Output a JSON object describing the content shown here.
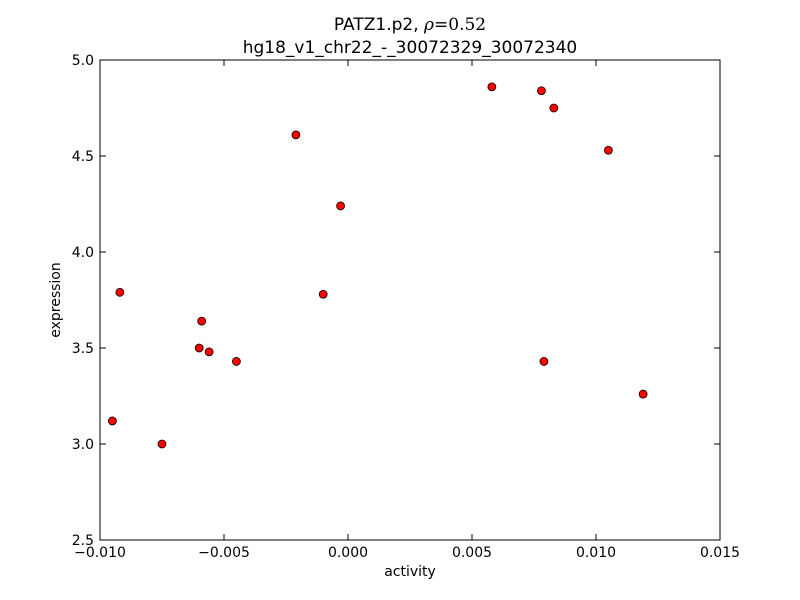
{
  "chart_data": {
    "type": "scatter",
    "title": {
      "prefix": "PATZ1.p2, ",
      "rho_symbol": "ρ",
      "rho_equals": "=",
      "rho_value": "0.52",
      "line2": "hg18_v1_chr22_-_30072329_30072340"
    },
    "xlabel": "activity",
    "ylabel": "expression",
    "xlim": [
      -0.01,
      0.015
    ],
    "ylim": [
      2.5,
      5.0
    ],
    "xticks": [
      -0.01,
      -0.005,
      0.0,
      0.005,
      0.01,
      0.015
    ],
    "xtick_labels": [
      "−0.010",
      "−0.005",
      "0.000",
      "0.005",
      "0.010",
      "0.015"
    ],
    "yticks": [
      2.5,
      3.0,
      3.5,
      4.0,
      4.5,
      5.0
    ],
    "ytick_labels": [
      "2.5",
      "3.0",
      "3.5",
      "4.0",
      "4.5",
      "5.0"
    ],
    "grid": false,
    "marker_color": "#ff0000",
    "marker_edge_color": "#000000",
    "points": [
      {
        "x": -0.0095,
        "y": 3.12
      },
      {
        "x": -0.0092,
        "y": 3.79
      },
      {
        "x": -0.0075,
        "y": 3.0
      },
      {
        "x": -0.006,
        "y": 3.5
      },
      {
        "x": -0.0059,
        "y": 3.64
      },
      {
        "x": -0.0056,
        "y": 3.48
      },
      {
        "x": -0.0045,
        "y": 3.43
      },
      {
        "x": -0.0021,
        "y": 4.61
      },
      {
        "x": -0.001,
        "y": 3.78
      },
      {
        "x": -0.0003,
        "y": 4.24
      },
      {
        "x": 0.0058,
        "y": 4.86
      },
      {
        "x": 0.0078,
        "y": 4.84
      },
      {
        "x": 0.0079,
        "y": 3.43
      },
      {
        "x": 0.0083,
        "y": 4.75
      },
      {
        "x": 0.0105,
        "y": 4.53
      },
      {
        "x": 0.0119,
        "y": 3.26
      }
    ]
  }
}
